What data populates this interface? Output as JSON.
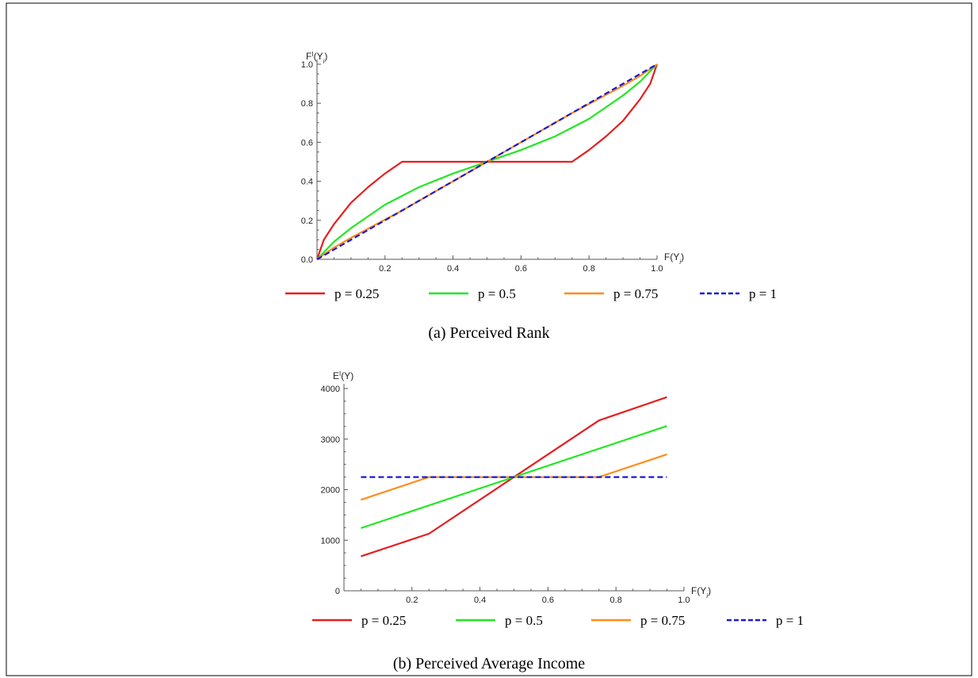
{
  "chart_data": [
    {
      "type": "line",
      "caption": "(a) Perceived Rank",
      "xlabel": "F(Y_i)",
      "ylabel": "F^I(Y_i)",
      "xlim": [
        0,
        1
      ],
      "ylim": [
        0,
        1
      ],
      "xticks": [
        0.2,
        0.4,
        0.6,
        0.8,
        1.0
      ],
      "xtick_labels": [
        "0.2",
        "0.4",
        "0.6",
        "0.8",
        "1.0"
      ],
      "yticks": [
        0,
        0.2,
        0.4,
        0.6,
        0.8,
        1.0
      ],
      "ytick_labels": [
        "0.0",
        "0.2",
        "0.4",
        "0.6",
        "0.8",
        "1.0"
      ],
      "grid": false,
      "legend_position": "bottom",
      "series": [
        {
          "name": "p = 0.25",
          "color": "#e61e1e",
          "dash": "solid",
          "x": [
            0,
            0.02,
            0.05,
            0.1,
            0.15,
            0.2,
            0.25,
            0.5,
            0.75,
            0.8,
            0.85,
            0.9,
            0.95,
            0.98,
            1.0
          ],
          "y": [
            0,
            0.1,
            0.18,
            0.29,
            0.37,
            0.44,
            0.5,
            0.5,
            0.5,
            0.56,
            0.63,
            0.71,
            0.82,
            0.9,
            1.0
          ]
        },
        {
          "name": "p = 0.5",
          "color": "#22e822",
          "dash": "solid",
          "x": [
            0,
            0.05,
            0.1,
            0.2,
            0.3,
            0.4,
            0.5,
            0.6,
            0.7,
            0.8,
            0.9,
            0.95,
            1.0
          ],
          "y": [
            0,
            0.09,
            0.16,
            0.28,
            0.37,
            0.44,
            0.5,
            0.56,
            0.63,
            0.72,
            0.84,
            0.91,
            1.0
          ]
        },
        {
          "name": "p = 0.75",
          "color": "#ff8c1a",
          "dash": "solid",
          "x": [
            0,
            0.05,
            0.1,
            0.25,
            0.5,
            0.75,
            0.9,
            0.95,
            1.0
          ],
          "y": [
            0,
            0.06,
            0.11,
            0.25,
            0.5,
            0.75,
            0.89,
            0.94,
            1.0
          ]
        },
        {
          "name": "p = 1",
          "color": "#1a1ad6",
          "dash": "dashed",
          "x": [
            0,
            1
          ],
          "y": [
            0,
            1
          ]
        }
      ]
    },
    {
      "type": "line",
      "caption": "(b) Perceived Average Income",
      "xlabel": "F(Y_i)",
      "ylabel": "E^I(Y)",
      "xlim": [
        0,
        1
      ],
      "ylim": [
        0,
        4000
      ],
      "xticks": [
        0.2,
        0.4,
        0.6,
        0.8,
        1.0
      ],
      "xtick_labels": [
        "0.2",
        "0.4",
        "0.6",
        "0.8",
        "1.0"
      ],
      "yticks": [
        0,
        1000,
        2000,
        3000,
        4000
      ],
      "ytick_labels": [
        "0",
        "1000",
        "2000",
        "3000",
        "4000"
      ],
      "grid": false,
      "legend_position": "bottom",
      "series": [
        {
          "name": "p = 0.25",
          "color": "#e61e1e",
          "dash": "solid",
          "x": [
            0.05,
            0.25,
            0.5,
            0.75,
            0.95
          ],
          "y": [
            680,
            1130,
            2250,
            3370,
            3830
          ]
        },
        {
          "name": "p = 0.5",
          "color": "#22e822",
          "dash": "solid",
          "x": [
            0.05,
            0.5,
            0.95
          ],
          "y": [
            1240,
            2250,
            3260
          ]
        },
        {
          "name": "p = 0.75",
          "color": "#ff8c1a",
          "dash": "solid",
          "x": [
            0.05,
            0.25,
            0.75,
            0.95
          ],
          "y": [
            1800,
            2250,
            2250,
            2700
          ]
        },
        {
          "name": "p = 1",
          "color": "#1a1ad6",
          "dash": "dashed",
          "x": [
            0.05,
            0.95
          ],
          "y": [
            2250,
            2250
          ]
        }
      ]
    }
  ]
}
